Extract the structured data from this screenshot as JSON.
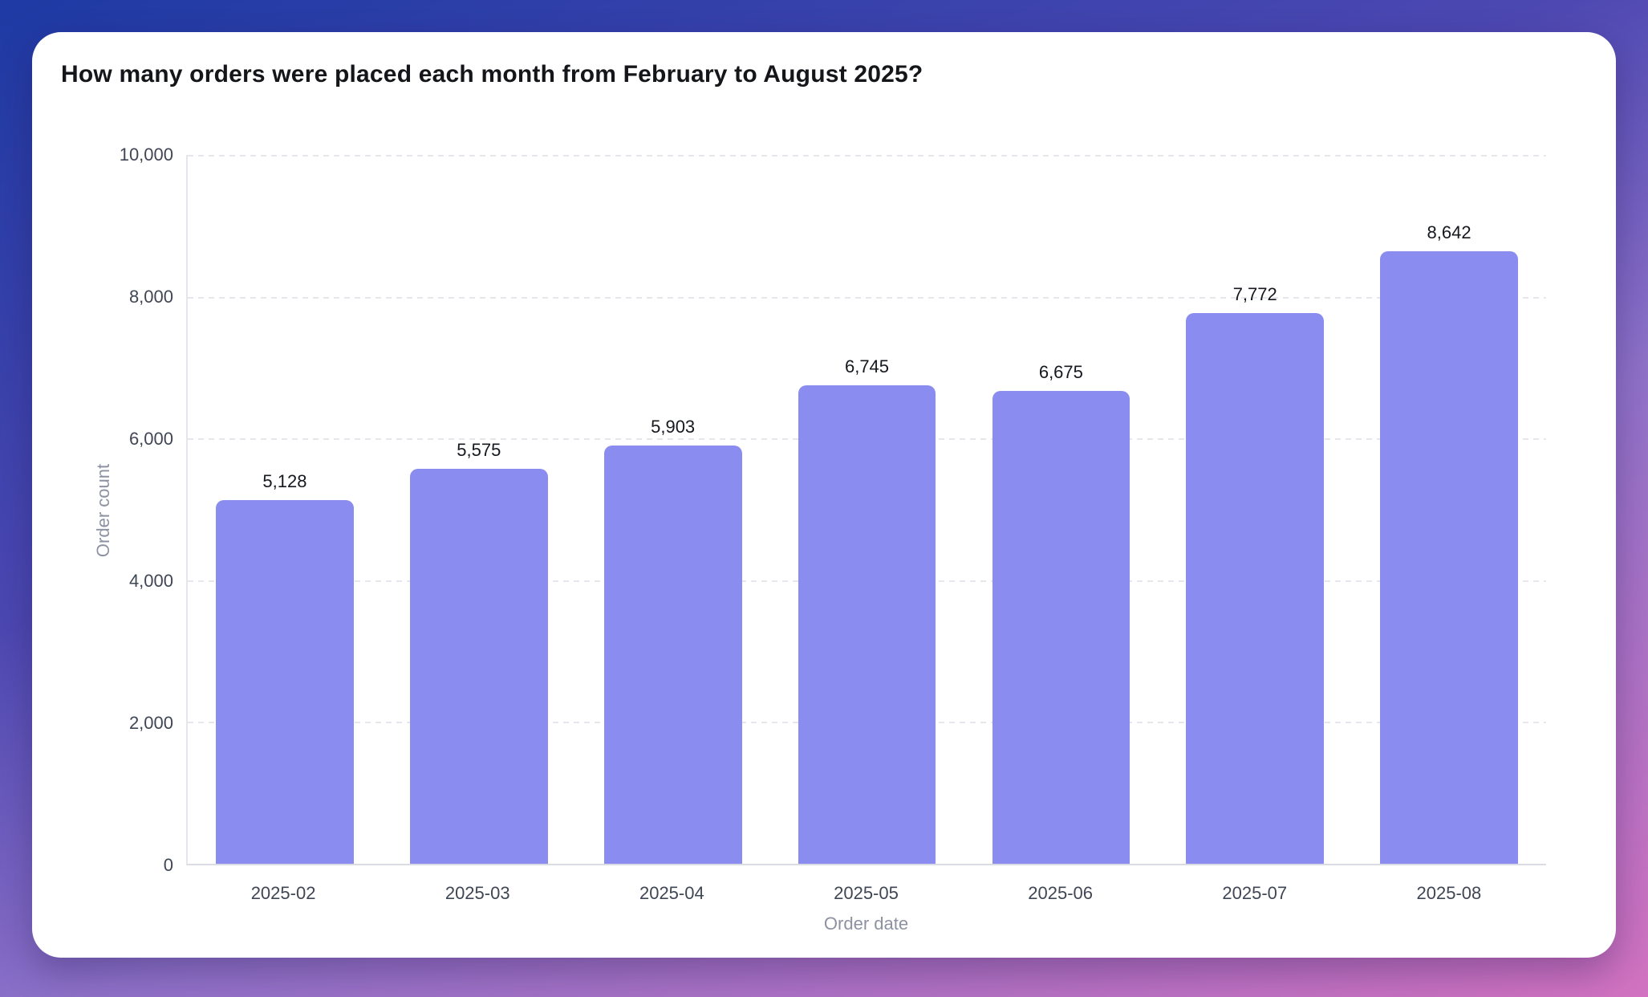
{
  "chart_data": {
    "type": "bar",
    "title": "How many orders were placed each month from February to August 2025?",
    "xlabel": "Order date",
    "ylabel": "Order count",
    "categories": [
      "2025-02",
      "2025-03",
      "2025-04",
      "2025-05",
      "2025-06",
      "2025-07",
      "2025-08"
    ],
    "values": [
      5128,
      5575,
      5903,
      6745,
      6675,
      7772,
      8642
    ],
    "value_labels": [
      "5,128",
      "5,575",
      "5,903",
      "6,745",
      "6,675",
      "7,772",
      "8,642"
    ],
    "ylim": [
      0,
      10000
    ],
    "yticks": [
      0,
      2000,
      4000,
      6000,
      8000,
      10000
    ],
    "ytick_labels": [
      "0",
      "2,000",
      "4,000",
      "6,000",
      "8,000",
      "10,000"
    ],
    "grid": "horizontal-dashed",
    "legend_position": "none",
    "colors": {
      "bar": "#8a8def",
      "card_background": "#ffffff",
      "background_gradient": [
        "#1e3aa4",
        "#4d48b2",
        "#8f72c9",
        "#d272c0"
      ],
      "title_text": "#14161a",
      "tick_text": "#3f4654",
      "axis_title_text": "#8d92a2",
      "gridline": "#e5e7ec"
    }
  }
}
